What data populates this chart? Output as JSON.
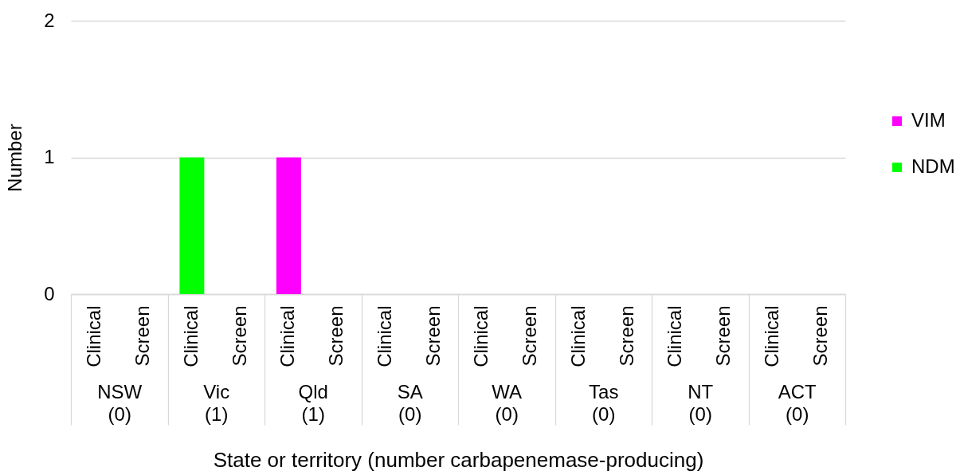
{
  "chart_data": {
    "type": "bar",
    "stacked": true,
    "categories": [
      "Clinical",
      "Screen",
      "Clinical",
      "Screen",
      "Clinical",
      "Screen",
      "Clinical",
      "Screen",
      "Clinical",
      "Screen",
      "Clinical",
      "Screen",
      "Clinical",
      "Screen",
      "Clinical",
      "Screen"
    ],
    "series": [
      {
        "name": "NDM",
        "color": "#00ff00",
        "values": [
          0,
          0,
          1,
          0,
          0,
          0,
          0,
          0,
          0,
          0,
          0,
          0,
          0,
          0,
          0,
          0
        ]
      },
      {
        "name": "VIM",
        "color": "#ff00ff",
        "values": [
          0,
          0,
          0,
          0,
          1,
          0,
          0,
          0,
          0,
          0,
          0,
          0,
          0,
          0,
          0,
          0
        ]
      }
    ],
    "xlabel": "State or territory (number carbapenemase-producing)",
    "ylabel": "Number",
    "ylim": [
      0,
      2
    ],
    "yticks": [
      0,
      1,
      2
    ],
    "grid": "y",
    "legend": "right",
    "annotations": [
      "NSW (0)",
      "Vic (1)",
      "Qld (1)",
      "SA (0)",
      "WA (0)",
      "Tas (0)",
      "NT (0)",
      "ACT (0)"
    ]
  }
}
